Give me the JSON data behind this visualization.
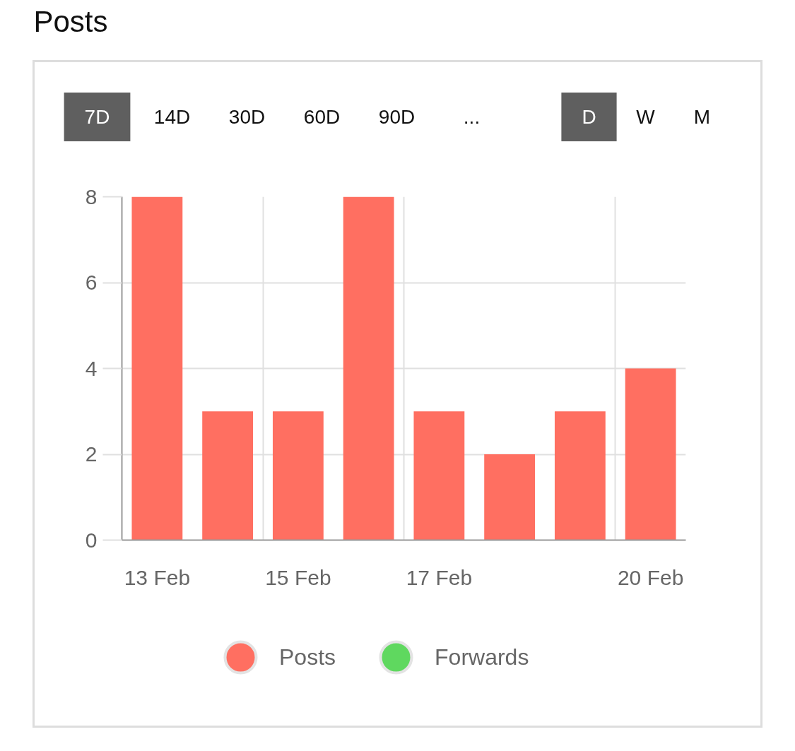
{
  "chart_data": {
    "type": "bar",
    "title": "Posts",
    "categories": [
      "13 Feb",
      null,
      "15 Feb",
      null,
      "17 Feb",
      null,
      null,
      "20 Feb"
    ],
    "series": [
      {
        "name": "Posts",
        "color": "#ff6f61",
        "values": [
          8,
          3,
          3,
          8,
          3,
          2,
          3,
          4
        ]
      },
      {
        "name": "Forwards",
        "color": "#5fd85f",
        "values": [
          null,
          null,
          null,
          null,
          null,
          null,
          null,
          null
        ]
      }
    ],
    "ylim": [
      0,
      8
    ],
    "yticks": [
      0,
      2,
      4,
      6,
      8
    ],
    "grid": true,
    "legend": "bottom",
    "annotations": [
      "7D",
      "14D",
      "30D",
      "60D",
      "90D",
      "...",
      "D",
      "W",
      "M"
    ]
  }
}
